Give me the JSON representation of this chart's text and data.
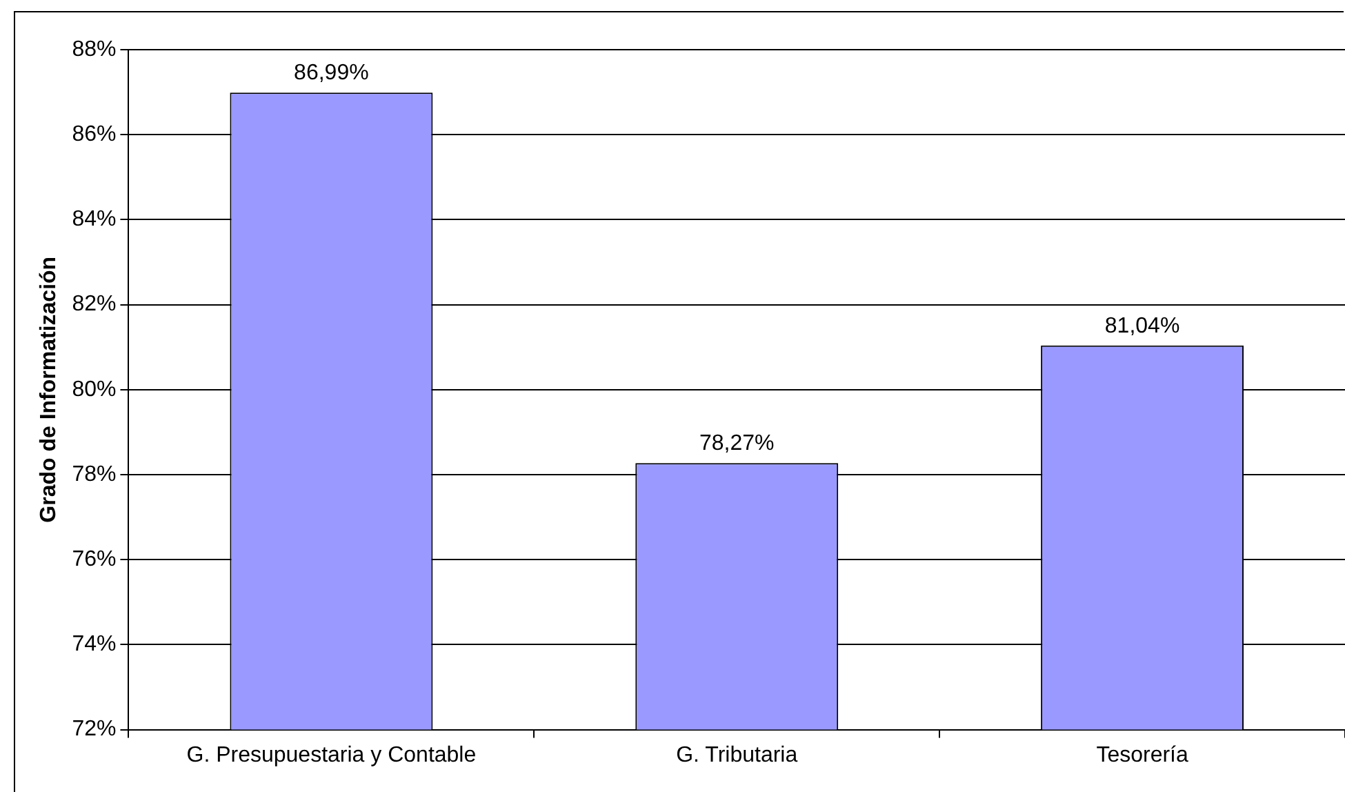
{
  "chart_data": {
    "type": "bar",
    "ylabel": "Grado de Informatización",
    "categories": [
      "G. Presupuestaria y Contable",
      "G. Tributaria",
      "Tesorería"
    ],
    "values": [
      86.99,
      78.27,
      81.04
    ],
    "value_labels": [
      "86,99%",
      "78,27%",
      "81,04%"
    ],
    "color": "#9999ff",
    "ylim": [
      72,
      88
    ],
    "yticks": [
      {
        "value": 72,
        "label": "72%"
      },
      {
        "value": 74,
        "label": "74%"
      },
      {
        "value": 76,
        "label": "76%"
      },
      {
        "value": 78,
        "label": "78%"
      },
      {
        "value": 80,
        "label": "80%"
      },
      {
        "value": 82,
        "label": "82%"
      },
      {
        "value": 84,
        "label": "84%"
      },
      {
        "value": 86,
        "label": "86%"
      },
      {
        "value": 88,
        "label": "88%"
      }
    ],
    "grid": "y",
    "legend": false
  }
}
